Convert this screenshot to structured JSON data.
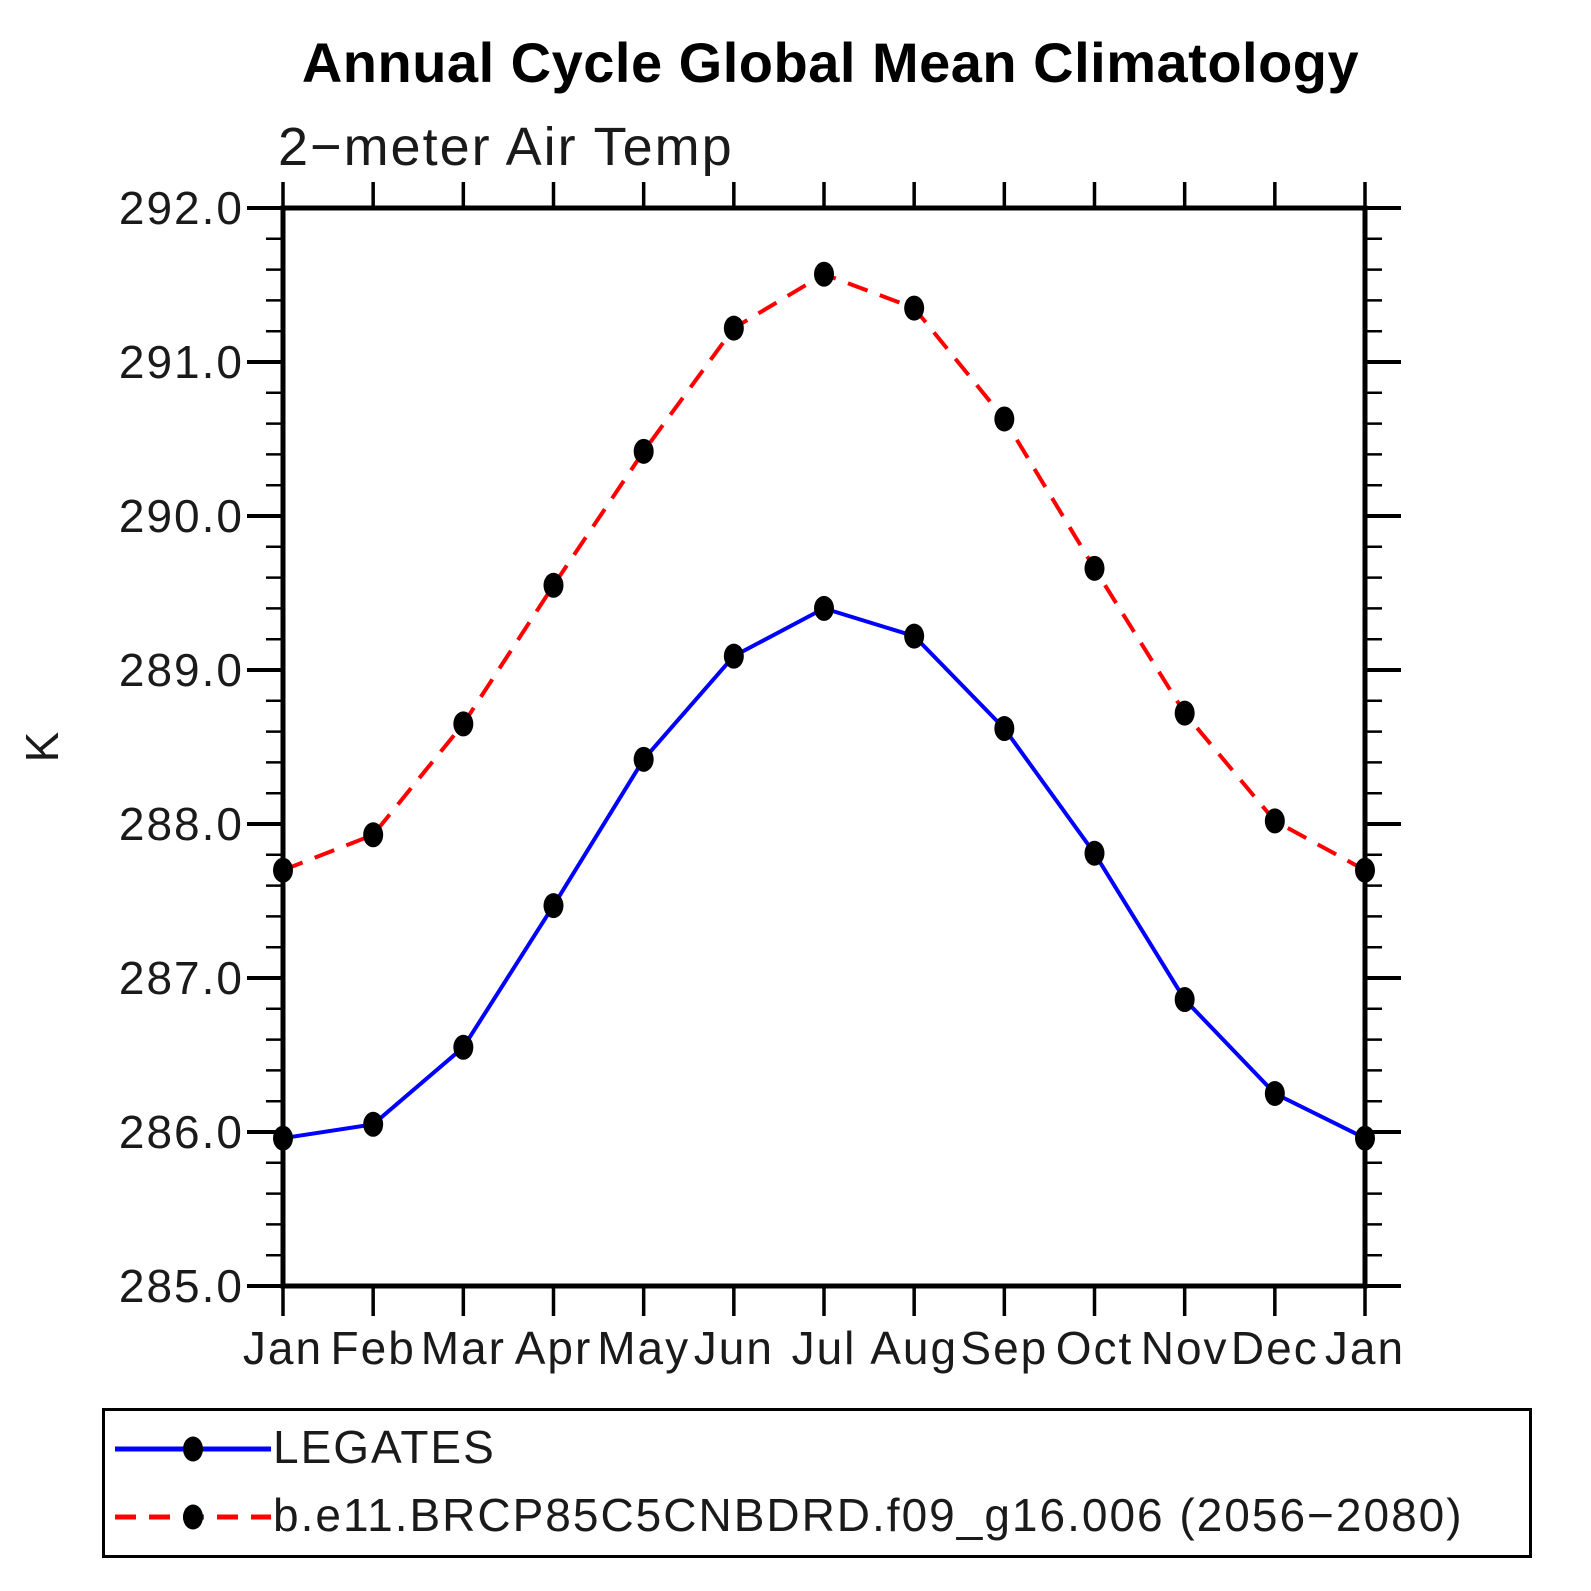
{
  "title": "Annual Cycle Global Mean Climatology",
  "subtitle": "2−meter Air Temp",
  "y_axis_label": "K",
  "colors": {
    "background": "#ffffff",
    "axis": "#000000",
    "text": "#000000",
    "series1_line": "#0000ff",
    "series2_line": "#ff0000",
    "marker": "#000000"
  },
  "chart_data": {
    "type": "line",
    "categories": [
      "Jan",
      "Feb",
      "Mar",
      "Apr",
      "May",
      "Jun",
      "Jul",
      "Aug",
      "Sep",
      "Oct",
      "Nov",
      "Dec",
      "Jan"
    ],
    "series": [
      {
        "name": "LEGATES",
        "line_color": "#0000ff",
        "line_style": "solid",
        "marker": "filled-circle",
        "marker_color": "#000000",
        "values": [
          285.96,
          286.05,
          286.55,
          287.47,
          288.42,
          289.09,
          289.4,
          289.22,
          288.62,
          287.81,
          286.86,
          286.25,
          285.96
        ]
      },
      {
        "name": "b.e11.BRCP85C5CNBDRD.f09_g16.006 (2056−2080)",
        "line_color": "#ff0000",
        "line_style": "dashed",
        "marker": "filled-circle",
        "marker_color": "#000000",
        "values": [
          287.7,
          287.93,
          288.65,
          289.55,
          290.42,
          291.22,
          291.57,
          291.35,
          290.63,
          289.66,
          288.72,
          288.02,
          287.7
        ]
      }
    ],
    "ylabel": "K",
    "xlabel": "",
    "ylim": [
      285.0,
      292.0
    ],
    "ytick_major_step": 1.0,
    "ytick_minor_step": 0.2,
    "ytick_labels": [
      "285.0",
      "286.0",
      "287.0",
      "288.0",
      "289.0",
      "290.0",
      "291.0",
      "292.0"
    ],
    "grid": false,
    "legend_position": "bottom-left-box"
  }
}
